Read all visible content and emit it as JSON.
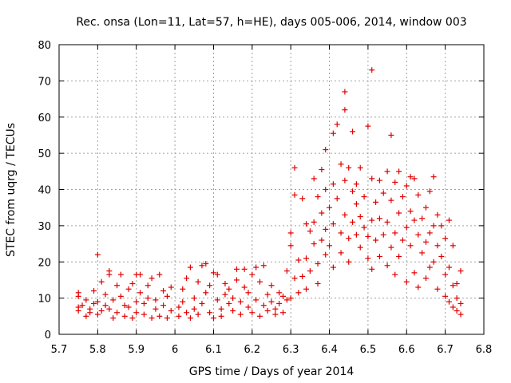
{
  "chart_data": {
    "type": "scatter",
    "title": "Rec. onsa (Lon=11, Lat=57, h=HE), days 005-006, 2014, window 003",
    "xlabel": "GPS time / Days of year 2014",
    "ylabel": "STEC from uqrg / TECUs",
    "xlim": [
      5.7,
      6.8
    ],
    "ylim": [
      0,
      80
    ],
    "xticks": [
      5.7,
      5.8,
      5.9,
      6.0,
      6.1,
      6.2,
      6.3,
      6.4,
      6.5,
      6.6,
      6.7,
      6.8
    ],
    "xtick_labels": [
      "5.7",
      "5.8",
      "5.9",
      "6",
      "6.1",
      "6.2",
      "6.3",
      "6.4",
      "6.5",
      "6.6",
      "6.7",
      "6.8"
    ],
    "yticks": [
      0,
      10,
      20,
      30,
      40,
      50,
      60,
      70,
      80
    ],
    "ytick_labels": [
      "0",
      "10",
      "20",
      "30",
      "40",
      "50",
      "60",
      "70",
      "80"
    ],
    "grid": true,
    "marker": "+",
    "color": "#e00000",
    "series": [
      {
        "name": "STEC",
        "points": [
          [
            5.75,
            11.5
          ],
          [
            5.75,
            10.5
          ],
          [
            5.75,
            7.5
          ],
          [
            5.75,
            6.5
          ],
          [
            5.76,
            8
          ],
          [
            5.77,
            5
          ],
          [
            5.77,
            9.5
          ],
          [
            5.78,
            7
          ],
          [
            5.78,
            6
          ],
          [
            5.79,
            12
          ],
          [
            5.79,
            8.5
          ],
          [
            5.8,
            22
          ],
          [
            5.8,
            5.5
          ],
          [
            5.8,
            9
          ],
          [
            5.81,
            14.5
          ],
          [
            5.81,
            6.5
          ],
          [
            5.82,
            11
          ],
          [
            5.82,
            8
          ],
          [
            5.83,
            16.5
          ],
          [
            5.83,
            17.5
          ],
          [
            5.83,
            7
          ],
          [
            5.84,
            4.5
          ],
          [
            5.84,
            9.5
          ],
          [
            5.85,
            13.5
          ],
          [
            5.85,
            6
          ],
          [
            5.86,
            10.5
          ],
          [
            5.86,
            16.5
          ],
          [
            5.87,
            5
          ],
          [
            5.87,
            8
          ],
          [
            5.88,
            12.5
          ],
          [
            5.88,
            7.5
          ],
          [
            5.89,
            14
          ],
          [
            5.89,
            4.5
          ],
          [
            5.9,
            16.5
          ],
          [
            5.9,
            9
          ],
          [
            5.9,
            6
          ],
          [
            5.91,
            11.5
          ],
          [
            5.91,
            16.5
          ],
          [
            5.92,
            5.5
          ],
          [
            5.92,
            8.5
          ],
          [
            5.93,
            13.5
          ],
          [
            5.93,
            10
          ],
          [
            5.94,
            4.5
          ],
          [
            5.94,
            15.5
          ],
          [
            5.95,
            7
          ],
          [
            5.95,
            9.5
          ],
          [
            5.96,
            16.5
          ],
          [
            5.96,
            5
          ],
          [
            5.97,
            12
          ],
          [
            5.97,
            8
          ],
          [
            5.98,
            10.5
          ],
          [
            5.98,
            4.5
          ],
          [
            5.99,
            6.5
          ],
          [
            5.99,
            13
          ],
          [
            6.01,
            5
          ],
          [
            6.01,
            7.5
          ],
          [
            6.02,
            12.5
          ],
          [
            6.02,
            9
          ],
          [
            6.03,
            6
          ],
          [
            6.03,
            15.5
          ],
          [
            6.04,
            18.5
          ],
          [
            6.04,
            4.5
          ],
          [
            6.05,
            10
          ],
          [
            6.05,
            7
          ],
          [
            6.06,
            14.5
          ],
          [
            6.06,
            5.5
          ],
          [
            6.07,
            19
          ],
          [
            6.07,
            8.5
          ],
          [
            6.08,
            19.5
          ],
          [
            6.08,
            11.5
          ],
          [
            6.09,
            6
          ],
          [
            6.09,
            13.5
          ],
          [
            6.1,
            17
          ],
          [
            6.1,
            4.5
          ],
          [
            6.11,
            9.5
          ],
          [
            6.11,
            16.5
          ],
          [
            6.12,
            7
          ],
          [
            6.12,
            5
          ],
          [
            6.13,
            11
          ],
          [
            6.13,
            14
          ],
          [
            6.14,
            8.5
          ],
          [
            6.14,
            12.5
          ],
          [
            6.15,
            6.5
          ],
          [
            6.15,
            10
          ],
          [
            6.16,
            15
          ],
          [
            6.16,
            18
          ],
          [
            6.17,
            5.5
          ],
          [
            6.17,
            9
          ],
          [
            6.18,
            18
          ],
          [
            6.18,
            13
          ],
          [
            6.19,
            7.5
          ],
          [
            6.19,
            11.5
          ],
          [
            6.2,
            16.5
          ],
          [
            6.2,
            6
          ],
          [
            6.21,
            18.5
          ],
          [
            6.21,
            9.5
          ],
          [
            6.22,
            14.5
          ],
          [
            6.22,
            5
          ],
          [
            6.23,
            19
          ],
          [
            6.23,
            8
          ],
          [
            6.24,
            11
          ],
          [
            6.24,
            6.5
          ],
          [
            6.25,
            13.5
          ],
          [
            6.25,
            9
          ],
          [
            6.26,
            7
          ],
          [
            6.26,
            5.5
          ],
          [
            6.27,
            11.5
          ],
          [
            6.27,
            8.5
          ],
          [
            6.28,
            10.5
          ],
          [
            6.28,
            6
          ],
          [
            6.29,
            17.5
          ],
          [
            6.29,
            9.5
          ],
          [
            6.3,
            28
          ],
          [
            6.3,
            10
          ],
          [
            6.3,
            24.5
          ],
          [
            6.31,
            46
          ],
          [
            6.31,
            38.5
          ],
          [
            6.31,
            15.5
          ],
          [
            6.32,
            20.5
          ],
          [
            6.32,
            11.5
          ],
          [
            6.33,
            37.5
          ],
          [
            6.33,
            16
          ],
          [
            6.34,
            30.5
          ],
          [
            6.34,
            21
          ],
          [
            6.34,
            12.5
          ],
          [
            6.35,
            28.5
          ],
          [
            6.35,
            17.5
          ],
          [
            6.36,
            43
          ],
          [
            6.36,
            31
          ],
          [
            6.36,
            25
          ],
          [
            6.37,
            38
          ],
          [
            6.37,
            19.5
          ],
          [
            6.37,
            14
          ],
          [
            6.38,
            45.5
          ],
          [
            6.38,
            33.5
          ],
          [
            6.38,
            26
          ],
          [
            6.39,
            51
          ],
          [
            6.39,
            40
          ],
          [
            6.39,
            29
          ],
          [
            6.39,
            22
          ],
          [
            6.4,
            35
          ],
          [
            6.4,
            24.5
          ],
          [
            6.41,
            55.5
          ],
          [
            6.41,
            41.5
          ],
          [
            6.41,
            30.5
          ],
          [
            6.41,
            18.5
          ],
          [
            6.42,
            58
          ],
          [
            6.42,
            37.5
          ],
          [
            6.43,
            47
          ],
          [
            6.43,
            28
          ],
          [
            6.43,
            22.5
          ],
          [
            6.44,
            67
          ],
          [
            6.44,
            62
          ],
          [
            6.44,
            42.5
          ],
          [
            6.44,
            33
          ],
          [
            6.45,
            46
          ],
          [
            6.45,
            26.5
          ],
          [
            6.45,
            20
          ],
          [
            6.46,
            56
          ],
          [
            6.46,
            39.5
          ],
          [
            6.46,
            31
          ],
          [
            6.47,
            41.5
          ],
          [
            6.47,
            27.5
          ],
          [
            6.47,
            36
          ],
          [
            6.48,
            46
          ],
          [
            6.48,
            24
          ],
          [
            6.48,
            32.5
          ],
          [
            6.49,
            38
          ],
          [
            6.49,
            29.5
          ],
          [
            6.5,
            57.5
          ],
          [
            6.5,
            27
          ],
          [
            6.5,
            21
          ],
          [
            6.51,
            73
          ],
          [
            6.51,
            43
          ],
          [
            6.51,
            31.5
          ],
          [
            6.51,
            18
          ],
          [
            6.52,
            36.5
          ],
          [
            6.52,
            26
          ],
          [
            6.53,
            42.5
          ],
          [
            6.53,
            32
          ],
          [
            6.53,
            21.5
          ],
          [
            6.54,
            39
          ],
          [
            6.54,
            27.5
          ],
          [
            6.55,
            45
          ],
          [
            6.55,
            31
          ],
          [
            6.55,
            19
          ],
          [
            6.56,
            55
          ],
          [
            6.56,
            37
          ],
          [
            6.56,
            24
          ],
          [
            6.57,
            42
          ],
          [
            6.57,
            28
          ],
          [
            6.57,
            16.5
          ],
          [
            6.58,
            45
          ],
          [
            6.58,
            33.5
          ],
          [
            6.58,
            21.5
          ],
          [
            6.59,
            38
          ],
          [
            6.59,
            26
          ],
          [
            6.6,
            41
          ],
          [
            6.6,
            29.5
          ],
          [
            6.6,
            14.5
          ],
          [
            6.61,
            43.5
          ],
          [
            6.61,
            34
          ],
          [
            6.61,
            24.5
          ],
          [
            6.62,
            43
          ],
          [
            6.62,
            31.5
          ],
          [
            6.62,
            17
          ],
          [
            6.63,
            38.5
          ],
          [
            6.63,
            27.5
          ],
          [
            6.63,
            13
          ],
          [
            6.64,
            32
          ],
          [
            6.64,
            22.5
          ],
          [
            6.65,
            35
          ],
          [
            6.65,
            25.5
          ],
          [
            6.65,
            15.5
          ],
          [
            6.66,
            39.5
          ],
          [
            6.66,
            28
          ],
          [
            6.66,
            18.5
          ],
          [
            6.67,
            43.5
          ],
          [
            6.67,
            30
          ],
          [
            6.67,
            20
          ],
          [
            6.68,
            33
          ],
          [
            6.68,
            24.5
          ],
          [
            6.68,
            12.5
          ],
          [
            6.69,
            30
          ],
          [
            6.69,
            21.5
          ],
          [
            6.7,
            26.5
          ],
          [
            6.7,
            16.5
          ],
          [
            6.7,
            10.5
          ],
          [
            6.71,
            31.5
          ],
          [
            6.71,
            18.5
          ],
          [
            6.71,
            9
          ],
          [
            6.72,
            24.5
          ],
          [
            6.72,
            13.5
          ],
          [
            6.72,
            7.5
          ],
          [
            6.73,
            14
          ],
          [
            6.73,
            10
          ],
          [
            6.73,
            6.5
          ],
          [
            6.74,
            17.5
          ],
          [
            6.74,
            8.5
          ],
          [
            6.74,
            5.5
          ]
        ]
      }
    ]
  }
}
